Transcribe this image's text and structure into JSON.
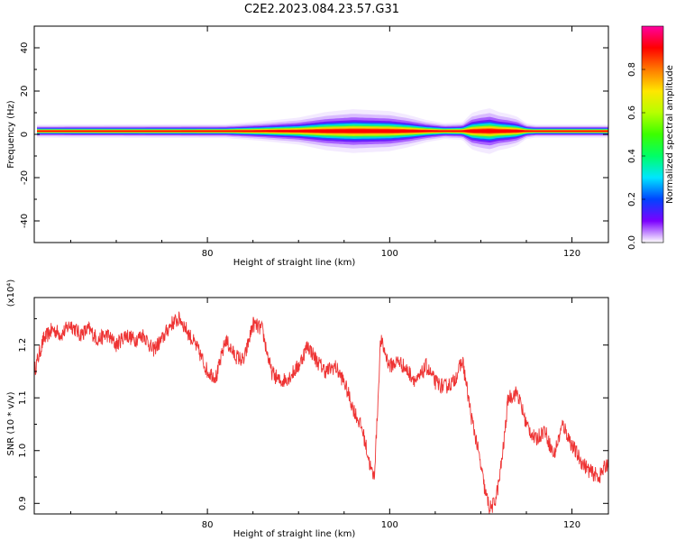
{
  "figure": {
    "title": "C2E2.2023.084.23.57.G31"
  },
  "chart_data": [
    {
      "type": "heatmap",
      "name": "spectrogram",
      "xlabel": "Height of straight line (km)",
      "ylabel": "Frequency (Hz)",
      "xlim": [
        61,
        124
      ],
      "ylim": [
        -50,
        50
      ],
      "x_ticks": [
        80,
        100,
        120
      ],
      "y_ticks": [
        -40,
        -20,
        0,
        20,
        40
      ],
      "center_frequency_hz": 1.5,
      "broadening": {
        "x": [
          61,
          82,
          86,
          90,
          93,
          96,
          98,
          100,
          102,
          104,
          106,
          108,
          109,
          110,
          111,
          112,
          113,
          114,
          115,
          116,
          124
        ],
        "halfwidth": [
          0.5,
          0.6,
          1.2,
          2.0,
          3.2,
          3.8,
          3.6,
          3.4,
          2.6,
          1.5,
          0.8,
          1.0,
          3.0,
          3.6,
          4.0,
          3.2,
          2.8,
          2.2,
          0.8,
          0.5,
          0.5
        ]
      },
      "grid": false,
      "colorbar": {
        "label": "Normalized spectral amplitude",
        "range": [
          0,
          1
        ],
        "ticks": [
          0.0,
          0.2,
          0.4,
          0.6,
          0.8
        ],
        "tick_labels": [
          "0.0",
          "0.2",
          "0.4",
          "0.6",
          "0.8"
        ],
        "colormap": [
          "#ffffff",
          "#7b00ff",
          "#0044ff",
          "#00e5ff",
          "#00ff66",
          "#3cff00",
          "#b6ff00",
          "#ffe600",
          "#ff7a00",
          "#ff0000",
          "#ff00a0"
        ]
      }
    },
    {
      "type": "line",
      "name": "snr",
      "xlabel": "Height of straight line (km)",
      "ylabel": "SNR (10 * v/v)",
      "y_multiplier": "(x10⁴)",
      "xlim": [
        61,
        124
      ],
      "ylim": [
        0.88,
        1.29
      ],
      "x_ticks": [
        80,
        100,
        120
      ],
      "y_ticks": [
        0.9,
        1.0,
        1.1,
        1.2
      ],
      "y_tick_labels": [
        "0.9",
        "1.0",
        "1.1",
        "1.2"
      ],
      "grid": false,
      "color": "#ee3333",
      "series": [
        {
          "x": [
            61,
            62,
            63,
            64,
            65,
            66,
            67,
            68,
            69,
            70,
            71,
            72,
            73,
            74,
            75,
            76,
            77,
            78,
            79,
            80,
            81,
            82,
            83,
            84,
            85,
            86,
            87,
            88,
            89,
            90,
            91,
            92,
            93,
            94,
            95,
            96,
            97,
            97.5,
            98,
            98.3,
            98.6,
            99,
            100,
            101,
            102,
            103,
            104,
            105,
            106,
            107,
            108,
            109,
            109.5,
            110,
            110.5,
            111,
            111.5,
            112,
            112.5,
            113,
            114,
            115,
            116,
            117,
            118,
            119,
            120,
            121,
            122,
            123,
            124
          ],
          "y": [
            1.15,
            1.21,
            1.23,
            1.22,
            1.24,
            1.22,
            1.23,
            1.21,
            1.22,
            1.2,
            1.22,
            1.21,
            1.22,
            1.19,
            1.21,
            1.24,
            1.25,
            1.22,
            1.19,
            1.15,
            1.14,
            1.21,
            1.18,
            1.17,
            1.24,
            1.23,
            1.15,
            1.13,
            1.14,
            1.16,
            1.2,
            1.17,
            1.15,
            1.16,
            1.13,
            1.08,
            1.04,
            1.0,
            0.96,
            0.95,
            1.05,
            1.21,
            1.16,
            1.17,
            1.15,
            1.13,
            1.16,
            1.13,
            1.12,
            1.13,
            1.17,
            1.06,
            1.02,
            0.97,
            0.92,
            0.89,
            0.9,
            0.94,
            1.01,
            1.1,
            1.11,
            1.05,
            1.02,
            1.04,
            0.99,
            1.05,
            1.01,
            0.98,
            0.96,
            0.95,
            0.98
          ]
        }
      ]
    }
  ]
}
